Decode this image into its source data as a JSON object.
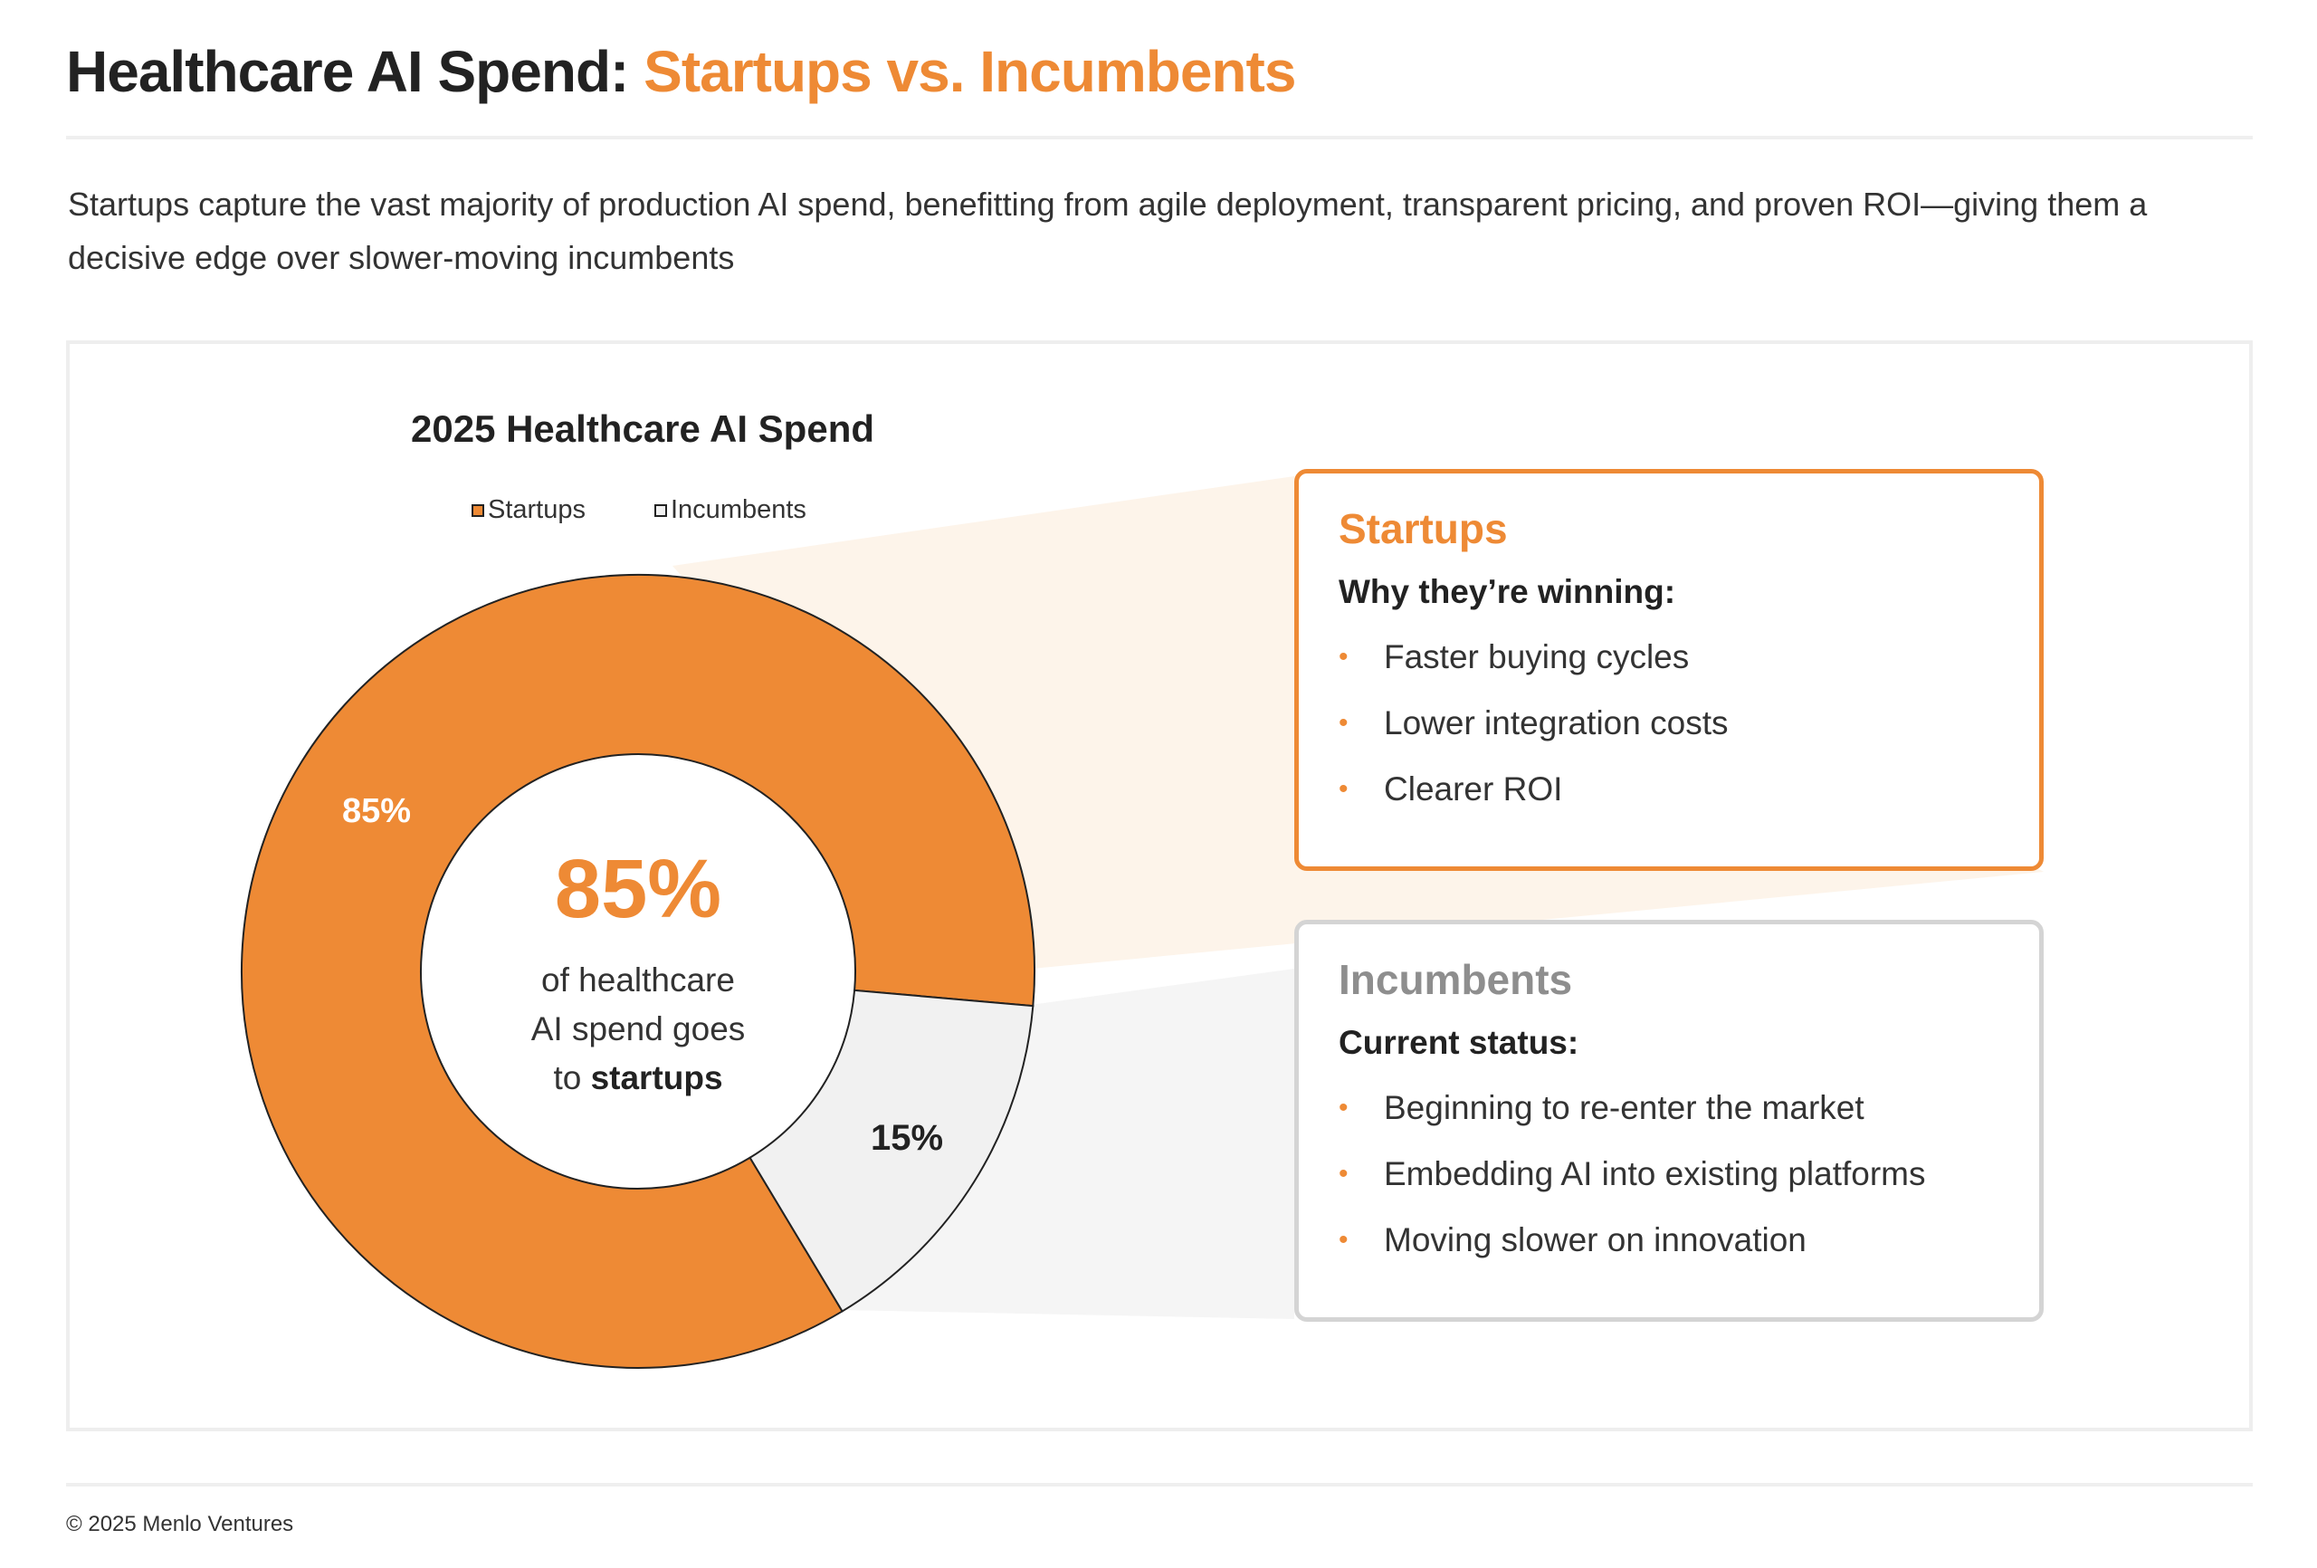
{
  "header": {
    "title_main": "Healthcare AI Spend:",
    "title_accent": "Startups vs. Incumbents",
    "subtitle": "Startups capture the vast majority of production AI spend, benefitting from agile deployment, transparent pricing, and proven ROI—giving them a decisive edge over slower-moving incumbents"
  },
  "colors": {
    "accent": "#ee8a35",
    "incumbent": "#f1f1f1",
    "startup_band": "#fdf4ea",
    "incumbent_band": "#f5f5f5"
  },
  "chart_data": {
    "type": "pie",
    "variant": "donut",
    "title": "2025 Healthcare AI Spend",
    "categories": [
      "Startups",
      "Incumbents"
    ],
    "values": [
      85,
      15
    ],
    "data_labels": [
      "85%",
      "15%"
    ],
    "legend": {
      "position": "top",
      "entries": [
        "Startups",
        "Incumbents"
      ]
    },
    "series_colors": [
      "#ee8a35",
      "#f1f1f1"
    ],
    "center": {
      "value": "85%",
      "line1": "of healthcare",
      "line2": "AI spend goes",
      "line3_prefix": "to",
      "line3_bold": "startups"
    }
  },
  "startups_box": {
    "title": "Startups",
    "subheading": "Why they’re winning:",
    "items": [
      "Faster buying cycles",
      "Lower integration costs",
      "Clearer ROI"
    ]
  },
  "incumbents_box": {
    "title": "Incumbents",
    "subheading": "Current status:",
    "items": [
      "Beginning to re-enter the market",
      "Embedding AI into existing platforms",
      "Moving slower on innovation"
    ]
  },
  "footer": {
    "copyright": "© 2025 Menlo Ventures"
  }
}
